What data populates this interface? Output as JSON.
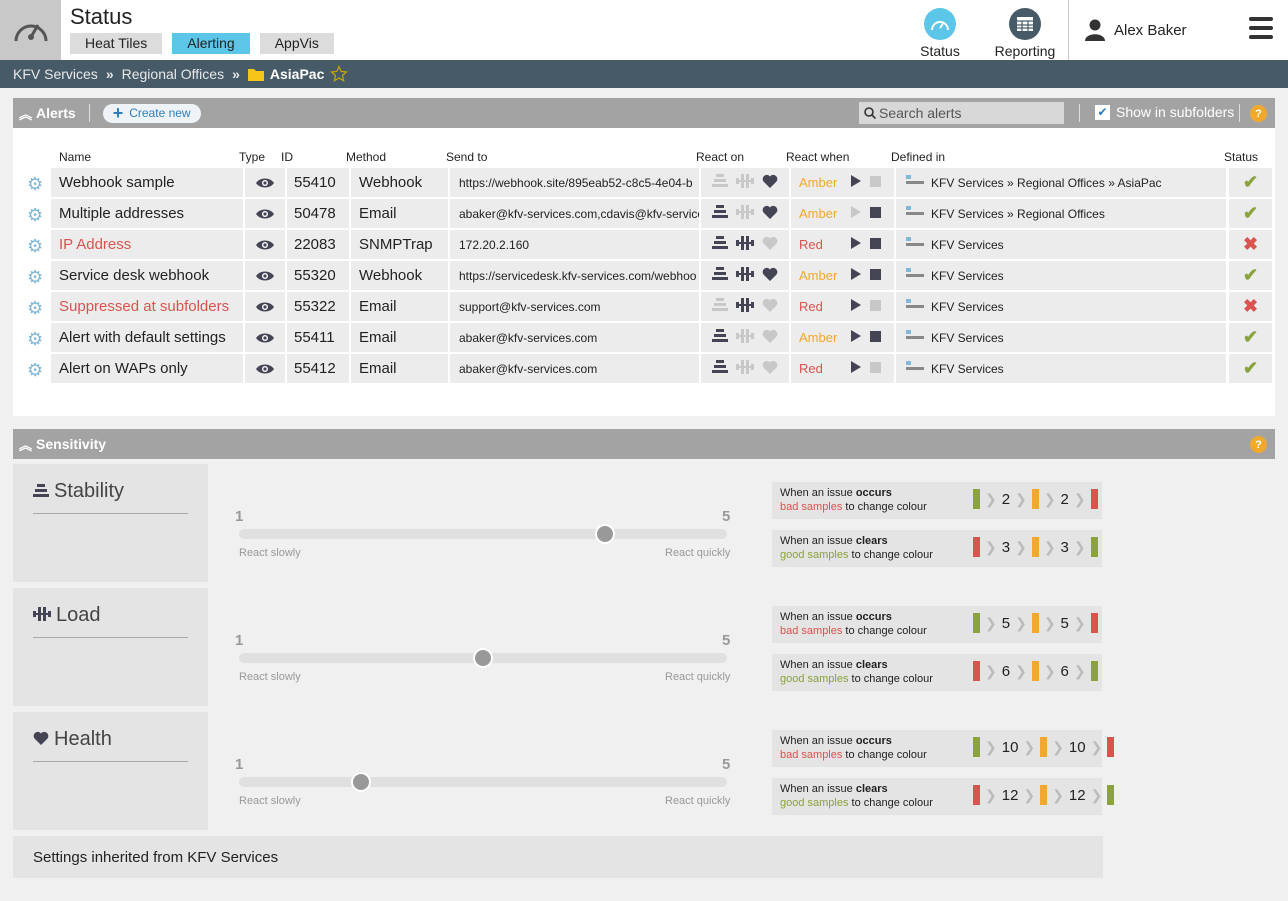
{
  "app": {
    "title": "Status",
    "tabs": [
      "Heat Tiles",
      "Alerting",
      "AppVis"
    ],
    "nav": [
      "Status",
      "Reporting"
    ],
    "user": "Alex Baker"
  },
  "breadcrumb": {
    "items": [
      "KFV Services",
      "Regional Offices"
    ],
    "current": "AsiaPac"
  },
  "alerts": {
    "title": "Alerts",
    "create": "Create new",
    "search_placeholder": "Search alerts",
    "subfolders": "Show in subfolders",
    "columns": [
      "Name",
      "Type",
      "ID",
      "Method",
      "Send to",
      "React on",
      "React when",
      "Defined in",
      "Status"
    ],
    "rows": [
      {
        "name": "Webhook sample",
        "id": "55410",
        "method": "Webhook",
        "send": "https://webhook.site/895eab52-c8c5-4e04-b",
        "when": "Amber",
        "defined": "KFV Services » Regional Offices » AsiaPac",
        "status": "ok",
        "react": [
          0,
          0,
          1
        ],
        "play": 1,
        "stop": 0,
        "hl": 0
      },
      {
        "name": "Multiple addresses",
        "id": "50478",
        "method": "Email",
        "send": "abaker@kfv-services.com,cdavis@kfv-service",
        "when": "Amber",
        "defined": "KFV Services » Regional Offices",
        "status": "ok",
        "react": [
          1,
          0,
          1
        ],
        "play": 0,
        "stop": 1,
        "hl": 0
      },
      {
        "name": "IP Address",
        "id": "22083",
        "method": "SNMPTrap",
        "send": "172.20.2.160",
        "when": "Red",
        "defined": "KFV Services",
        "status": "err",
        "react": [
          1,
          1,
          0
        ],
        "play": 1,
        "stop": 1,
        "hl": 1
      },
      {
        "name": "Service desk webhook",
        "id": "55320",
        "method": "Webhook",
        "send": "https://servicedesk.kfv-services.com/webhoo",
        "when": "Amber",
        "defined": "KFV Services",
        "status": "ok",
        "react": [
          1,
          1,
          1
        ],
        "play": 1,
        "stop": 1,
        "hl": 0
      },
      {
        "name": "Suppressed at subfolders",
        "id": "55322",
        "method": "Email",
        "send": "support@kfv-services.com",
        "when": "Red",
        "defined": "KFV Services",
        "status": "err",
        "react": [
          0,
          1,
          0
        ],
        "play": 1,
        "stop": 0,
        "hl": 1
      },
      {
        "name": "Alert with default settings",
        "id": "55411",
        "method": "Email",
        "send": "abaker@kfv-services.com",
        "when": "Amber",
        "defined": "KFV Services",
        "status": "ok",
        "react": [
          1,
          0,
          0
        ],
        "play": 1,
        "stop": 1,
        "hl": 0
      },
      {
        "name": "Alert on WAPs only",
        "id": "55412",
        "method": "Email",
        "send": "abaker@kfv-services.com",
        "when": "Red",
        "defined": "KFV Services",
        "status": "ok",
        "react": [
          1,
          0,
          0
        ],
        "play": 1,
        "stop": 0,
        "hl": 0
      }
    ]
  },
  "sensitivity": {
    "title": "Sensitivity",
    "min": "1",
    "max": "5",
    "slow": "React slowly",
    "fast": "React quickly",
    "occurs_a": "When an issue ",
    "occurs_b": "occurs",
    "clears_b": "clears",
    "bad": "bad samples",
    "good": "good samples",
    "suffix": " to change colour",
    "rows": [
      {
        "name": "Stability",
        "level": 0.75,
        "occurs": [
          "2",
          "2"
        ],
        "clears": [
          "3",
          "3"
        ]
      },
      {
        "name": "Load",
        "level": 0.5,
        "occurs": [
          "5",
          "5"
        ],
        "clears": [
          "6",
          "6"
        ]
      },
      {
        "name": "Health",
        "level": 0.25,
        "occurs": [
          "10",
          "10"
        ],
        "clears": [
          "12",
          "12"
        ]
      }
    ],
    "inherited": "Settings inherited from KFV Services"
  },
  "colors": {
    "accent": "#5bc6e8",
    "amber": "#f0a82d",
    "red": "#d9534f",
    "green": "#8aa33c",
    "header": "#465a68"
  }
}
